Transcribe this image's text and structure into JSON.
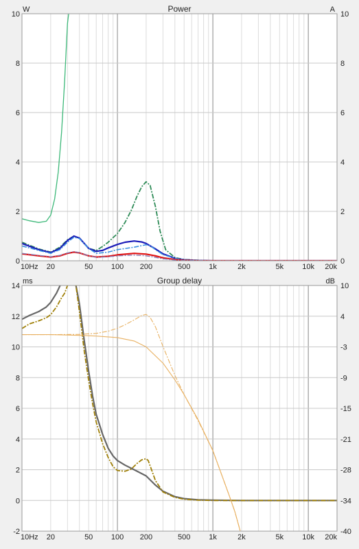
{
  "chart_data": [
    {
      "type": "line",
      "title": "Power",
      "ylabel_left": "W",
      "ylabel_right": "A",
      "xscale": "log",
      "xlim": [
        10,
        20000
      ],
      "ylim_left": [
        0,
        10
      ],
      "ylim_right": [
        0,
        10
      ],
      "grid": true,
      "x_ticks": [
        10,
        20,
        50,
        100,
        200,
        500,
        1000,
        2000,
        5000,
        10000,
        20000
      ],
      "x_tick_labels": [
        "10Hz",
        "20",
        "50",
        "100",
        "200",
        "500",
        "1k",
        "2k",
        "5k",
        "10k",
        "20k"
      ],
      "y_ticks_left": [
        0,
        2,
        4,
        6,
        8,
        10
      ],
      "y_ticks_right": [
        0,
        2,
        4,
        6,
        8,
        10
      ],
      "series": [
        {
          "color": "#3cb878",
          "dash": "solid",
          "width": 1.3,
          "x": [
            10,
            12,
            15,
            18,
            20,
            22,
            24,
            26,
            28,
            30,
            32
          ],
          "y": [
            1.7,
            1.62,
            1.55,
            1.6,
            1.85,
            2.5,
            3.6,
            5.2,
            7.3,
            9.6,
            10.5
          ]
        },
        {
          "color": "#2e8b57",
          "dash": "dashdot",
          "width": 1.8,
          "x": [
            10,
            15,
            20,
            25,
            30,
            35,
            40,
            50,
            60,
            70,
            80,
            100,
            120,
            140,
            160,
            180,
            200,
            220,
            250,
            280,
            320,
            400,
            500,
            700,
            1000,
            2000,
            20000
          ],
          "y": [
            0.75,
            0.48,
            0.35,
            0.55,
            0.85,
            1.0,
            0.92,
            0.5,
            0.42,
            0.58,
            0.75,
            1.1,
            1.55,
            2.05,
            2.6,
            3.0,
            3.2,
            3.05,
            2.2,
            1.2,
            0.45,
            0.13,
            0.05,
            0.02,
            0.0,
            0.0,
            0.0
          ]
        },
        {
          "color": "#1a1ab8",
          "dash": "solid",
          "width": 2.2,
          "x": [
            10,
            15,
            20,
            25,
            30,
            35,
            40,
            50,
            60,
            70,
            80,
            100,
            120,
            150,
            180,
            200,
            250,
            300,
            400,
            500,
            700,
            1000,
            2000,
            20000
          ],
          "y": [
            0.7,
            0.45,
            0.33,
            0.5,
            0.82,
            1.0,
            0.92,
            0.5,
            0.38,
            0.42,
            0.52,
            0.66,
            0.75,
            0.8,
            0.76,
            0.7,
            0.48,
            0.28,
            0.1,
            0.04,
            0.01,
            0.0,
            0.0,
            0.0
          ]
        },
        {
          "color": "#3a8fe0",
          "dash": "dashdot",
          "width": 1.6,
          "x": [
            10,
            15,
            20,
            25,
            30,
            35,
            40,
            50,
            60,
            80,
            100,
            150,
            200,
            220,
            250,
            300,
            400,
            500,
            700,
            1000,
            20000
          ],
          "y": [
            0.6,
            0.42,
            0.3,
            0.45,
            0.75,
            0.95,
            0.9,
            0.5,
            0.3,
            0.35,
            0.45,
            0.55,
            0.65,
            0.62,
            0.45,
            0.25,
            0.1,
            0.04,
            0.01,
            0.0,
            0.0
          ]
        },
        {
          "color": "#e01010",
          "dash": "solid",
          "width": 2.2,
          "x": [
            10,
            15,
            20,
            25,
            30,
            35,
            40,
            50,
            60,
            80,
            100,
            150,
            200,
            250,
            300,
            400,
            500,
            700,
            1000,
            20000
          ],
          "y": [
            0.28,
            0.2,
            0.15,
            0.2,
            0.3,
            0.35,
            0.32,
            0.2,
            0.15,
            0.18,
            0.24,
            0.3,
            0.27,
            0.2,
            0.12,
            0.05,
            0.02,
            0.0,
            0.0,
            0.0
          ]
        },
        {
          "color": "#8a7ab0",
          "dash": "dashdot",
          "width": 1.4,
          "x": [
            10,
            15,
            20,
            25,
            30,
            35,
            40,
            50,
            60,
            80,
            100,
            150,
            200,
            250,
            300,
            400,
            500,
            1000,
            20000
          ],
          "y": [
            0.3,
            0.22,
            0.16,
            0.22,
            0.32,
            0.37,
            0.33,
            0.2,
            0.14,
            0.16,
            0.2,
            0.23,
            0.2,
            0.14,
            0.08,
            0.03,
            0.01,
            0.0,
            0.0
          ]
        }
      ]
    },
    {
      "type": "line",
      "title": "Group delay",
      "ylabel_left": "ms",
      "ylabel_right": "dB",
      "xscale": "log",
      "xlim": [
        10,
        20000
      ],
      "ylim_left": [
        -2,
        14
      ],
      "ylim_right": [
        -40,
        10
      ],
      "grid": true,
      "x_ticks": [
        10,
        20,
        50,
        100,
        200,
        500,
        1000,
        2000,
        5000,
        10000,
        20000
      ],
      "x_tick_labels": [
        "10Hz",
        "20",
        "50",
        "100",
        "200",
        "500",
        "1k",
        "2k",
        "5k",
        "10k",
        "20k"
      ],
      "y_ticks_left": [
        -2,
        0,
        2,
        4,
        6,
        8,
        10,
        12,
        14
      ],
      "y_tick_labels_right": [
        "10",
        "4",
        "-3",
        "-9",
        "-15",
        "-21",
        "-28",
        "-34",
        "-40"
      ],
      "series": [
        {
          "color": "#666666",
          "dash": "solid",
          "width": 2.2,
          "axis": "left",
          "x": [
            10,
            12,
            15,
            18,
            20,
            23,
            26,
            28,
            30,
            33,
            36,
            40,
            45,
            50,
            55,
            60,
            70,
            80,
            90,
            100,
            120,
            150,
            200,
            250,
            300,
            400,
            500,
            700,
            1000,
            2000,
            5000,
            20000
          ],
          "y": [
            11.8,
            12.05,
            12.3,
            12.6,
            12.9,
            13.5,
            14.2,
            14.6,
            14.6,
            14.6,
            14.3,
            12.8,
            10.4,
            8.4,
            6.8,
            5.6,
            4.3,
            3.4,
            2.9,
            2.6,
            2.3,
            2.0,
            1.6,
            1.0,
            0.6,
            0.25,
            0.12,
            0.04,
            0.02,
            0.0,
            0.0,
            0.0
          ]
        },
        {
          "color": "#a08008",
          "dash": "dashdot",
          "width": 1.8,
          "axis": "left",
          "x": [
            10,
            12,
            15,
            18,
            20,
            23,
            26,
            28,
            30,
            33,
            36,
            40,
            45,
            50,
            55,
            60,
            70,
            80,
            90,
            100,
            120,
            140,
            160,
            180,
            200,
            210,
            225,
            250,
            300,
            400,
            500,
            700,
            1000,
            2000,
            20000
          ],
          "y": [
            11.2,
            11.5,
            11.7,
            11.9,
            12.1,
            12.6,
            13.2,
            13.5,
            14.0,
            14.6,
            14.4,
            12.3,
            9.7,
            7.8,
            6.3,
            5.1,
            3.7,
            2.8,
            2.2,
            1.95,
            1.9,
            2.05,
            2.4,
            2.65,
            2.72,
            2.6,
            2.1,
            1.3,
            0.55,
            0.2,
            0.08,
            0.02,
            0.0,
            0.0,
            0.0
          ]
        },
        {
          "color": "#e8b060",
          "dash": "solid",
          "width": 1.1,
          "axis": "right",
          "x": [
            10,
            20,
            40,
            60,
            100,
            150,
            200,
            300,
            400,
            500,
            700,
            1000,
            1500,
            1700,
            2000,
            20000
          ],
          "y": [
            0.0,
            0.0,
            -0.15,
            -0.3,
            -0.6,
            -1.3,
            -2.5,
            -5.8,
            -9.2,
            -12.2,
            -17.3,
            -23.6,
            -33.0,
            -36.0,
            -41.0,
            -41.0
          ]
        },
        {
          "color": "#e8b060",
          "dash": "dashdot",
          "width": 1.1,
          "axis": "right",
          "x": [
            10,
            20,
            40,
            60,
            80,
            100,
            120,
            150,
            180,
            200,
            220,
            250,
            300,
            400,
            500,
            700,
            1000,
            1500,
            1700,
            2000,
            20000
          ],
          "y": [
            0.0,
            0.0,
            0.05,
            0.25,
            0.7,
            1.3,
            2.0,
            3.0,
            3.9,
            4.1,
            3.5,
            1.6,
            -2.4,
            -8.3,
            -12.2,
            -17.5,
            -23.6,
            -33.0,
            -36.0,
            -41.0,
            -41.0
          ]
        }
      ]
    }
  ]
}
